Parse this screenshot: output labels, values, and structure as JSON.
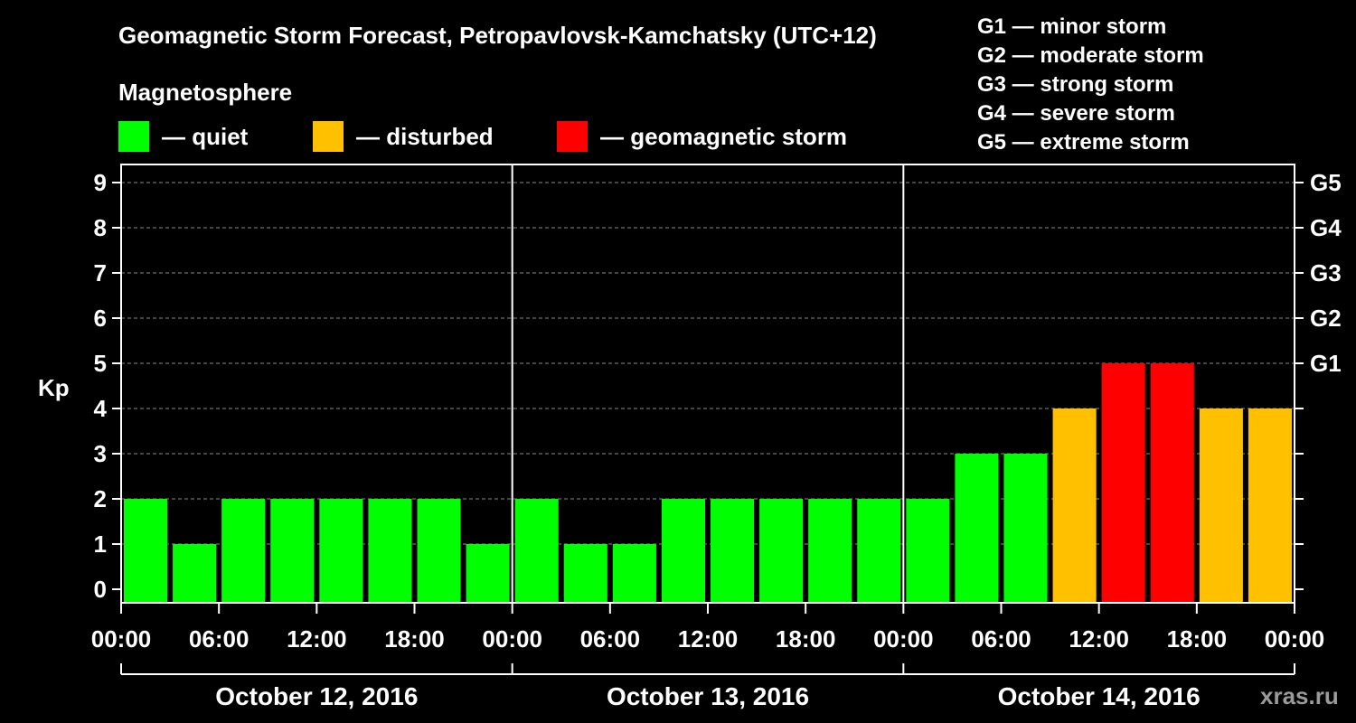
{
  "chart_data": {
    "type": "bar",
    "title": "Geomagnetic Storm Forecast, Petropavlovsk-Kamchatsky (UTC+12)",
    "legend_title": "Magnetosphere",
    "legend": [
      {
        "label": "— quiet",
        "color": "#00ff00"
      },
      {
        "label": "— disturbed",
        "color": "#ffc000"
      },
      {
        "label": "— geomagnetic storm",
        "color": "#ff0000"
      }
    ],
    "storm_scale": [
      "G1 — minor storm",
      "G2 — moderate storm",
      "G3 — strong storm",
      "G4 — severe storm",
      "G5 — extreme storm"
    ],
    "ylabel": "Kp",
    "ylim": [
      0,
      9
    ],
    "yticks": [
      "0",
      "1",
      "2",
      "3",
      "4",
      "5",
      "6",
      "7",
      "8",
      "9"
    ],
    "right_axis": [
      {
        "label": "G1",
        "kp": 5
      },
      {
        "label": "G2",
        "kp": 6
      },
      {
        "label": "G3",
        "kp": 7
      },
      {
        "label": "G4",
        "kp": 8
      },
      {
        "label": "G5",
        "kp": 9
      }
    ],
    "xtick_labels": [
      "00:00",
      "06:00",
      "12:00",
      "18:00",
      "00:00",
      "06:00",
      "12:00",
      "18:00",
      "00:00",
      "06:00",
      "12:00",
      "18:00",
      "00:00"
    ],
    "days": [
      "October 12, 2016",
      "October 13, 2016",
      "October 14, 2016"
    ],
    "values": [
      2,
      1,
      2,
      2,
      2,
      2,
      2,
      1,
      2,
      1,
      1,
      2,
      2,
      2,
      2,
      2,
      2,
      3,
      3,
      4,
      5,
      5,
      4,
      4
    ],
    "colors": {
      "quiet": "#00ff00",
      "disturbed": "#ffc000",
      "storm": "#ff0000"
    },
    "grid": true
  },
  "watermark": "xras.ru"
}
